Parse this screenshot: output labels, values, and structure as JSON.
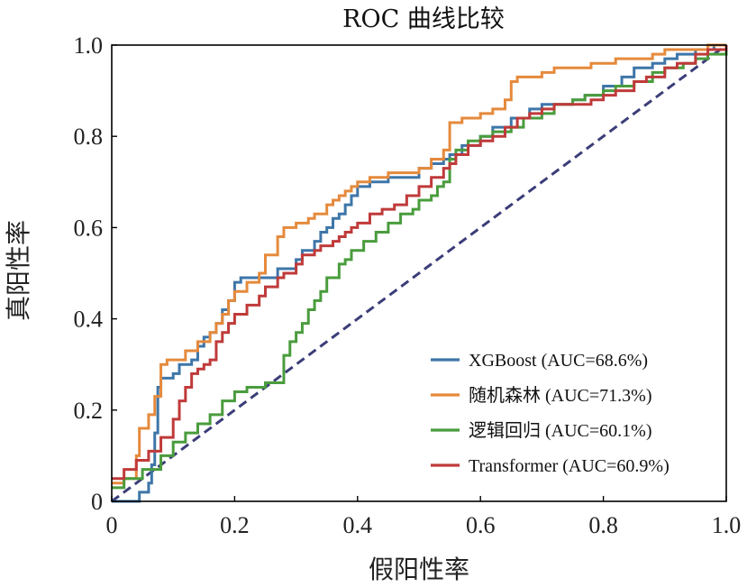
{
  "chart_data": {
    "type": "line",
    "title": "ROC 曲线比较",
    "xlabel": "假阳性率",
    "ylabel": "真阳性率",
    "xlim": [
      0,
      1
    ],
    "ylim": [
      0,
      1
    ],
    "x_ticks": [
      {
        "value": 0,
        "label": "0"
      },
      {
        "value": 0.2,
        "label": "0.2"
      },
      {
        "value": 0.4,
        "label": "0.4"
      },
      {
        "value": 0.6,
        "label": "0.6"
      },
      {
        "value": 0.8,
        "label": "0.8"
      },
      {
        "value": 1.0,
        "label": "1.0"
      }
    ],
    "y_ticks": [
      {
        "value": 0,
        "label": "0"
      },
      {
        "value": 0.2,
        "label": "0.2"
      },
      {
        "value": 0.4,
        "label": "0.4"
      },
      {
        "value": 0.6,
        "label": "0.6"
      },
      {
        "value": 0.8,
        "label": "0.8"
      },
      {
        "value": 1.0,
        "label": "1.0"
      }
    ],
    "legend_position": "bottom-right",
    "grid": false,
    "diagonal": {
      "x": [
        0,
        1
      ],
      "y": [
        0,
        1
      ],
      "color": "#3b3d78",
      "style": "dashed"
    },
    "series": [
      {
        "name": "XGBoost (AUC=68.6%)",
        "color": "#3e76a8",
        "x": [
          0,
          0.01,
          0.04,
          0.045,
          0.06,
          0.065,
          0.07,
          0.075,
          0.08,
          0.1,
          0.11,
          0.13,
          0.14,
          0.15,
          0.16,
          0.17,
          0.18,
          0.19,
          0.2,
          0.21,
          0.22,
          0.25,
          0.27,
          0.3,
          0.31,
          0.33,
          0.34,
          0.35,
          0.36,
          0.37,
          0.38,
          0.39,
          0.4,
          0.42,
          0.45,
          0.5,
          0.52,
          0.54,
          0.55,
          0.57,
          0.6,
          0.62,
          0.65,
          0.68,
          0.7,
          0.72,
          0.75,
          0.77,
          0.8,
          0.83,
          0.85,
          0.88,
          0.9,
          0.92,
          0.95,
          0.98,
          1.0
        ],
        "y": [
          0,
          0,
          0,
          0.02,
          0.04,
          0.08,
          0.15,
          0.25,
          0.27,
          0.28,
          0.3,
          0.31,
          0.34,
          0.36,
          0.37,
          0.39,
          0.42,
          0.44,
          0.48,
          0.49,
          0.49,
          0.49,
          0.51,
          0.53,
          0.55,
          0.57,
          0.59,
          0.6,
          0.62,
          0.63,
          0.65,
          0.67,
          0.69,
          0.7,
          0.71,
          0.73,
          0.74,
          0.75,
          0.76,
          0.78,
          0.8,
          0.82,
          0.84,
          0.86,
          0.87,
          0.87,
          0.88,
          0.89,
          0.91,
          0.93,
          0.95,
          0.96,
          0.97,
          0.98,
          0.99,
          1.0,
          1.0
        ]
      },
      {
        "name": "随机森林 (AUC=71.3%)",
        "color": "#e58a3c",
        "x": [
          0,
          0.02,
          0.04,
          0.045,
          0.06,
          0.07,
          0.08,
          0.09,
          0.1,
          0.12,
          0.14,
          0.16,
          0.17,
          0.18,
          0.19,
          0.2,
          0.22,
          0.24,
          0.25,
          0.27,
          0.28,
          0.3,
          0.32,
          0.33,
          0.35,
          0.36,
          0.37,
          0.38,
          0.39,
          0.4,
          0.42,
          0.45,
          0.5,
          0.52,
          0.54,
          0.55,
          0.57,
          0.6,
          0.62,
          0.64,
          0.65,
          0.66,
          0.68,
          0.7,
          0.72,
          0.75,
          0.78,
          0.8,
          0.82,
          0.85,
          0.88,
          0.9,
          0.93,
          0.95,
          0.97,
          0.99,
          1.0
        ],
        "y": [
          0.04,
          0.05,
          0.1,
          0.16,
          0.19,
          0.23,
          0.3,
          0.31,
          0.31,
          0.33,
          0.35,
          0.37,
          0.39,
          0.41,
          0.44,
          0.46,
          0.48,
          0.5,
          0.54,
          0.58,
          0.6,
          0.61,
          0.62,
          0.63,
          0.65,
          0.66,
          0.67,
          0.68,
          0.69,
          0.7,
          0.71,
          0.72,
          0.73,
          0.75,
          0.77,
          0.83,
          0.84,
          0.85,
          0.86,
          0.88,
          0.92,
          0.93,
          0.93,
          0.94,
          0.95,
          0.95,
          0.96,
          0.96,
          0.97,
          0.97,
          0.98,
          0.99,
          0.99,
          0.99,
          1.0,
          1.0,
          1.0
        ]
      },
      {
        "name": "逻辑回归 (AUC=60.1%)",
        "color": "#4a9c3d",
        "x": [
          0,
          0.02,
          0.05,
          0.08,
          0.1,
          0.12,
          0.14,
          0.16,
          0.18,
          0.2,
          0.22,
          0.25,
          0.27,
          0.28,
          0.29,
          0.3,
          0.31,
          0.32,
          0.33,
          0.34,
          0.35,
          0.37,
          0.38,
          0.39,
          0.41,
          0.43,
          0.45,
          0.47,
          0.49,
          0.5,
          0.52,
          0.53,
          0.54,
          0.55,
          0.56,
          0.58,
          0.6,
          0.62,
          0.65,
          0.67,
          0.7,
          0.72,
          0.75,
          0.77,
          0.8,
          0.82,
          0.85,
          0.88,
          0.9,
          0.93,
          0.95,
          0.97,
          1.0
        ],
        "y": [
          0.03,
          0.05,
          0.07,
          0.1,
          0.13,
          0.15,
          0.17,
          0.19,
          0.22,
          0.24,
          0.25,
          0.26,
          0.26,
          0.32,
          0.35,
          0.37,
          0.39,
          0.42,
          0.44,
          0.46,
          0.49,
          0.52,
          0.53,
          0.55,
          0.57,
          0.59,
          0.61,
          0.63,
          0.64,
          0.66,
          0.67,
          0.69,
          0.7,
          0.75,
          0.77,
          0.79,
          0.8,
          0.81,
          0.82,
          0.84,
          0.85,
          0.87,
          0.88,
          0.89,
          0.9,
          0.91,
          0.92,
          0.94,
          0.95,
          0.96,
          0.97,
          0.98,
          1.0
        ]
      },
      {
        "name": "Transformer (AUC=60.9%)",
        "color": "#c03a3a",
        "x": [
          0,
          0.02,
          0.04,
          0.06,
          0.08,
          0.1,
          0.11,
          0.12,
          0.13,
          0.14,
          0.15,
          0.16,
          0.17,
          0.18,
          0.19,
          0.2,
          0.22,
          0.24,
          0.25,
          0.27,
          0.28,
          0.3,
          0.31,
          0.33,
          0.34,
          0.36,
          0.37,
          0.38,
          0.39,
          0.4,
          0.42,
          0.44,
          0.46,
          0.48,
          0.5,
          0.52,
          0.54,
          0.55,
          0.56,
          0.58,
          0.6,
          0.62,
          0.64,
          0.66,
          0.68,
          0.7,
          0.72,
          0.75,
          0.78,
          0.8,
          0.82,
          0.85,
          0.87,
          0.9,
          0.92,
          0.95,
          0.97,
          1.0
        ],
        "y": [
          0.05,
          0.07,
          0.09,
          0.11,
          0.14,
          0.18,
          0.22,
          0.25,
          0.28,
          0.29,
          0.3,
          0.31,
          0.35,
          0.37,
          0.39,
          0.41,
          0.43,
          0.45,
          0.47,
          0.49,
          0.5,
          0.52,
          0.54,
          0.55,
          0.56,
          0.57,
          0.58,
          0.59,
          0.6,
          0.61,
          0.63,
          0.64,
          0.65,
          0.67,
          0.69,
          0.71,
          0.73,
          0.74,
          0.76,
          0.78,
          0.79,
          0.8,
          0.82,
          0.84,
          0.85,
          0.86,
          0.87,
          0.87,
          0.88,
          0.89,
          0.9,
          0.92,
          0.93,
          0.95,
          0.96,
          0.98,
          0.99,
          1.0
        ]
      }
    ]
  }
}
